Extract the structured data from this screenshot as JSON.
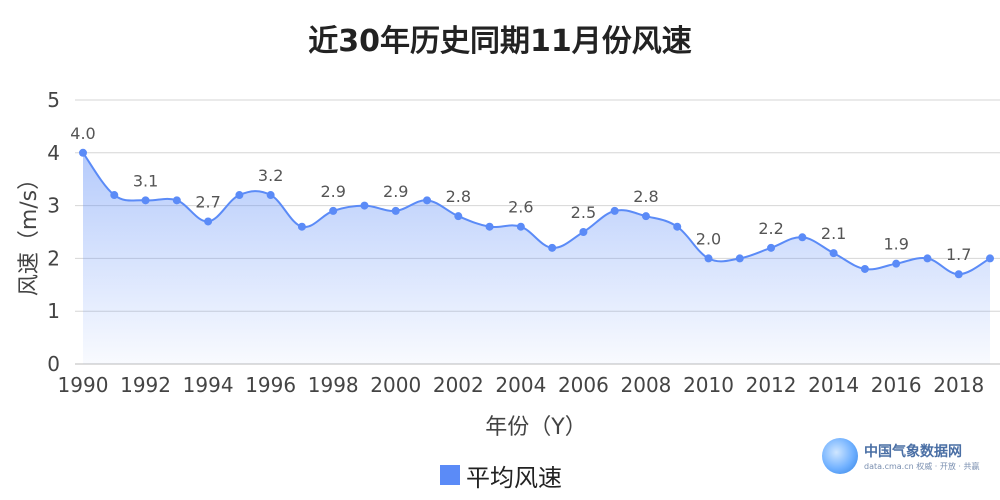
{
  "chart_data": {
    "type": "area",
    "title": "近30年历史同期11月份风速",
    "xlabel": "年份（Y）",
    "ylabel": "风速（m/s）",
    "ylim": [
      0,
      5
    ],
    "yticks": [
      "0",
      "1",
      "2",
      "3",
      "4",
      "5"
    ],
    "x": [
      1990,
      1991,
      1992,
      1993,
      1994,
      1995,
      1996,
      1997,
      1998,
      1999,
      2000,
      2001,
      2002,
      2003,
      2004,
      2005,
      2006,
      2007,
      2008,
      2009,
      2010,
      2011,
      2012,
      2013,
      2014,
      2015,
      2016,
      2017,
      2018,
      2019
    ],
    "xticks": [
      "1990",
      "1992",
      "1994",
      "1996",
      "1998",
      "2000",
      "2002",
      "2004",
      "2006",
      "2008",
      "2010",
      "2012",
      "2014",
      "2016",
      "2018"
    ],
    "grid": true,
    "legend": "bottom-center",
    "series": [
      {
        "name": "平均风速",
        "color": "#5b8bf7",
        "values": [
          4.0,
          3.2,
          3.1,
          3.1,
          2.7,
          3.2,
          3.2,
          2.6,
          2.9,
          3.0,
          2.9,
          3.1,
          2.8,
          2.6,
          2.6,
          2.2,
          2.5,
          2.9,
          2.8,
          2.6,
          2.0,
          2.0,
          2.2,
          2.4,
          2.1,
          1.8,
          1.9,
          2.0,
          1.7,
          2.0
        ],
        "labels": [
          {
            "x": 1990,
            "text": "4.0"
          },
          {
            "x": 1992,
            "text": "3.1"
          },
          {
            "x": 1994,
            "text": "2.7"
          },
          {
            "x": 1996,
            "text": "3.2"
          },
          {
            "x": 1998,
            "text": "2.9"
          },
          {
            "x": 2000,
            "text": "2.9"
          },
          {
            "x": 2002,
            "text": "2.8"
          },
          {
            "x": 2004,
            "text": "2.6"
          },
          {
            "x": 2006,
            "text": "2.5"
          },
          {
            "x": 2008,
            "text": "2.8"
          },
          {
            "x": 2010,
            "text": "2.0"
          },
          {
            "x": 2012,
            "text": "2.2"
          },
          {
            "x": 2014,
            "text": "2.1"
          },
          {
            "x": 2016,
            "text": "1.9"
          },
          {
            "x": 2018,
            "text": "1.7"
          }
        ]
      }
    ]
  },
  "brand": {
    "name": "中国气象数据网",
    "sub": "data.cma.cn 权威 · 开放 · 共赢",
    "logo_icon": "cma-logo-icon"
  }
}
